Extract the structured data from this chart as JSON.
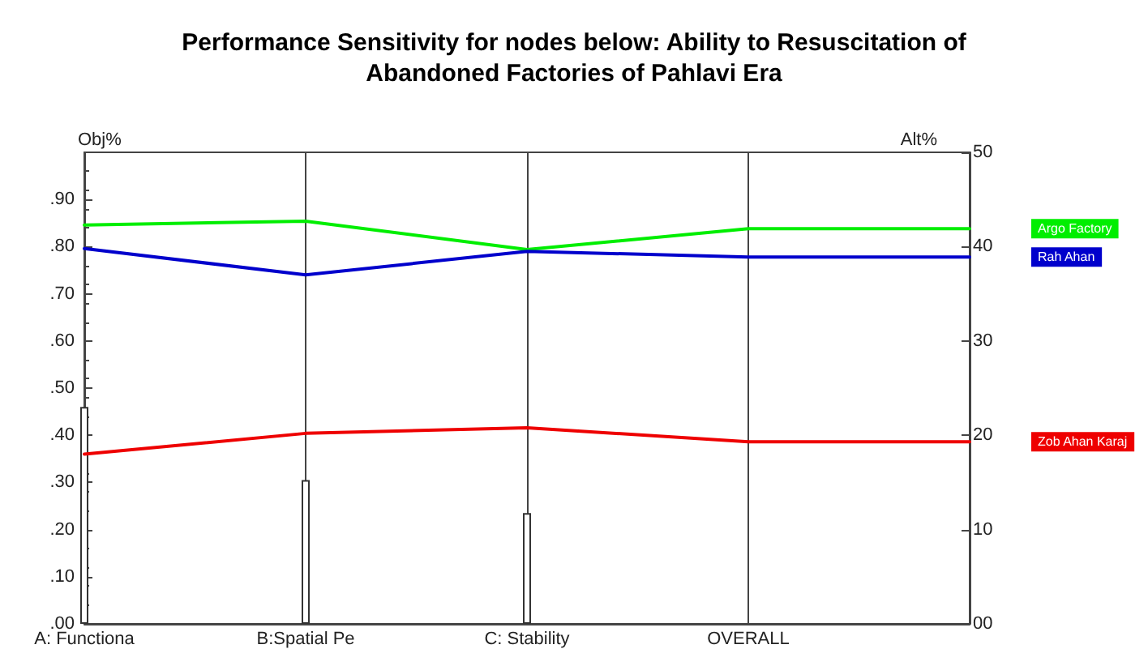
{
  "chart_data": {
    "type": "line",
    "title": "Performance Sensitivity for nodes below: Ability to Resuscitation of\nAbandoned Factories of Pahlavi Era",
    "ylabel": "Obj%",
    "y2label": "Alt%",
    "categories": [
      "A: Functiona",
      "B:Spatial Pe",
      "C: Stability",
      "OVERALL",
      null
    ],
    "series": [
      {
        "name": "Argo Factory",
        "color": "#00ee00",
        "axis": "y2",
        "values": [
          42.3,
          42.7,
          39.7,
          41.9,
          41.9
        ]
      },
      {
        "name": "Rah Ahan",
        "color": "#0000cc",
        "axis": "y2",
        "values": [
          39.8,
          37.0,
          39.5,
          38.9,
          38.9
        ]
      },
      {
        "name": "Zob Ahan Karaj",
        "color": "#ee0000",
        "axis": "y2",
        "values": [
          18.0,
          20.2,
          20.8,
          19.3,
          19.3
        ]
      },
      {
        "type": "bar",
        "color": "#ffffff",
        "values": [
          0.46,
          0.305,
          0.235,
          null,
          null
        ]
      }
    ],
    "ylim": [
      0,
      1
    ],
    "yticks": [
      {
        "value": 0,
        "label": ".00"
      },
      {
        "value": 0.1,
        "label": ".10"
      },
      {
        "value": 0.2,
        "label": ".20"
      },
      {
        "value": 0.3,
        "label": ".30"
      },
      {
        "value": 0.4,
        "label": ".40"
      },
      {
        "value": 0.5,
        "label": ".50"
      },
      {
        "value": 0.6,
        "label": ".60"
      },
      {
        "value": 0.7,
        "label": ".70"
      },
      {
        "value": 0.8,
        "label": ".80"
      },
      {
        "value": 0.9,
        "label": ".90"
      }
    ],
    "y2lim": [
      0,
      50
    ],
    "y2ticks": [
      {
        "value": 0,
        "label": "00"
      },
      10,
      20,
      30,
      40,
      50
    ],
    "grid": "x",
    "marker": "none",
    "line_style": "solid"
  }
}
